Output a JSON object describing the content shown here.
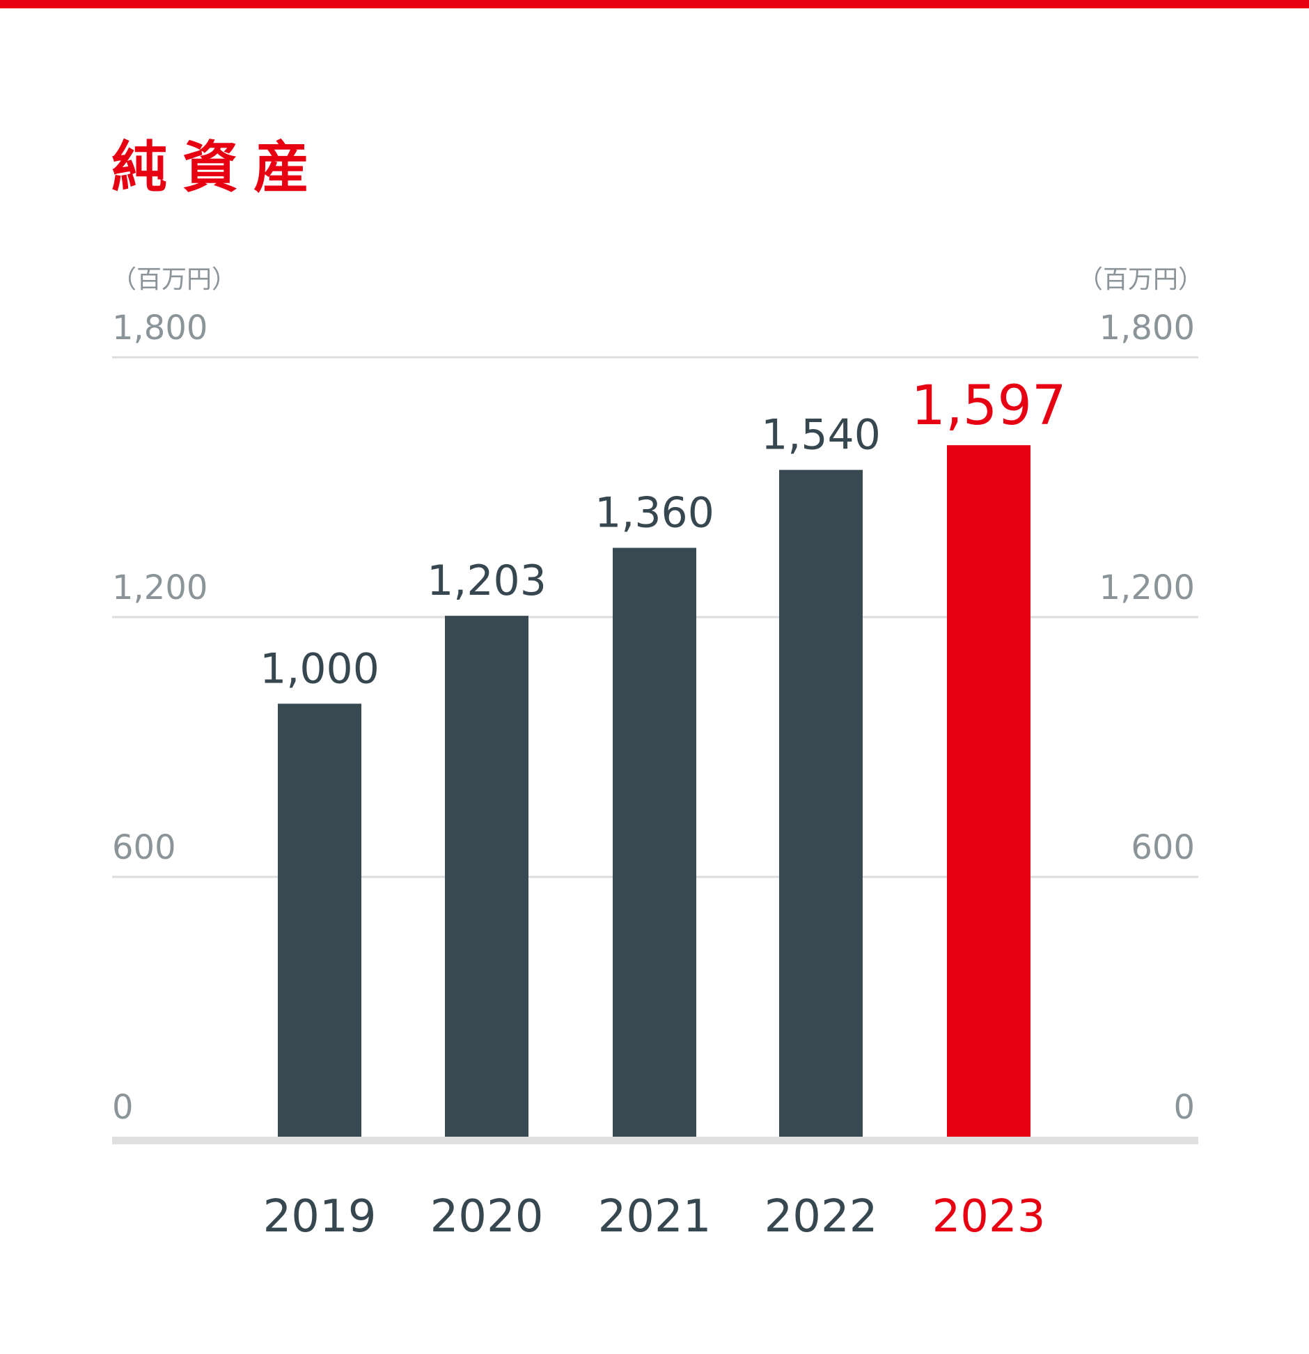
{
  "chart_data": {
    "type": "bar",
    "title": "純資産",
    "unit_left": "（百万円）",
    "unit_right": "（百万円）",
    "categories": [
      "2019",
      "2020",
      "2021",
      "2022",
      "2023"
    ],
    "values": [
      1000,
      1203,
      1360,
      1540,
      1597
    ],
    "value_labels": [
      "1,000",
      "1,203",
      "1,360",
      "1,540",
      "1,597"
    ],
    "highlight_index": 4,
    "ylim": [
      0,
      1800
    ],
    "yticks": [
      0,
      600,
      1200,
      1800
    ],
    "ytick_labels": [
      "0",
      "600",
      "1,200",
      "1,800"
    ],
    "grid": true,
    "xlabel": "",
    "ylabel": ""
  },
  "colors": {
    "accent": "#e60012",
    "bar": "#37474f",
    "grid": "#dddddd",
    "axis": "#e0e0e0",
    "tick": "#8a9499"
  }
}
